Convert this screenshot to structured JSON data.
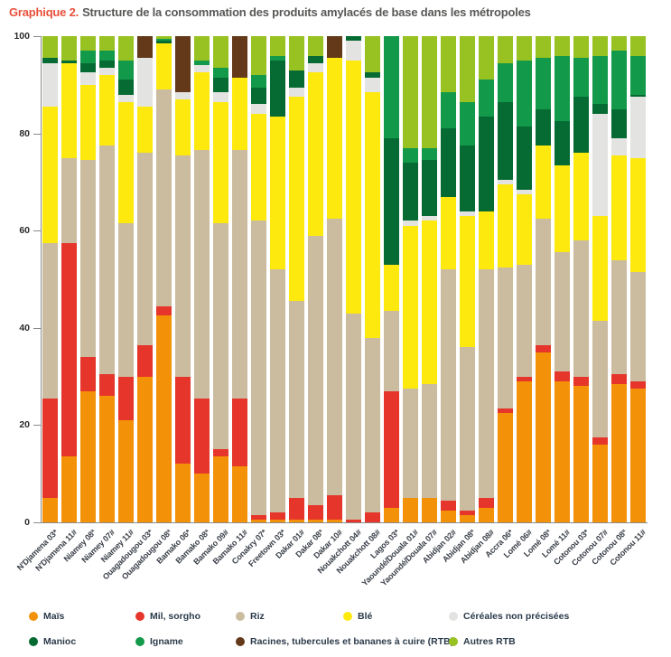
{
  "title": {
    "prefix": "Graphique 2.",
    "text": "Structure de la consommation des produits amylacés de base dans les métropoles"
  },
  "colors": {
    "mais": "#f39208",
    "mil": "#e6352b",
    "riz": "#cbbca0",
    "ble": "#fde90d",
    "cnp": "#e3e3e1",
    "manioc": "#066a33",
    "igname": "#12994a",
    "rtb": "#64391a",
    "autres_rtb": "#97c222",
    "accent_title": "#e8503a",
    "axis": "#8a8a8a"
  },
  "y_axis": {
    "ticks": [
      "0",
      "20",
      "40",
      "60",
      "80",
      "100"
    ]
  },
  "legend": {
    "items": [
      {
        "key": "mais",
        "label": "Maïs"
      },
      {
        "key": "mil",
        "label": "Mil, sorgho"
      },
      {
        "key": "riz",
        "label": "Riz"
      },
      {
        "key": "ble",
        "label": "Blé"
      },
      {
        "key": "cnp",
        "label": "Céréales non précisées"
      },
      {
        "key": "manioc",
        "label": "Manioc"
      },
      {
        "key": "igname",
        "label": "Igname"
      },
      {
        "key": "rtb",
        "label": "Racines, tubercules et bananes à cuire (RTB)"
      },
      {
        "key": "autres_rtb",
        "label": "Autres RTB"
      }
    ]
  },
  "chart_data": {
    "type": "bar",
    "stacked": true,
    "unit": "percent of staple starchy food consumption",
    "ylim": [
      0,
      100
    ],
    "grid": false,
    "legend_position": "bottom",
    "categories": [
      "N'Djamena 03*",
      "N'Djamena 11#",
      "Niamey 08ª",
      "Niamey 07#",
      "Niamey 11#",
      "Ouagadougou 03*",
      "Ouagadougou 08ª",
      "Bamako 06*",
      "Bamako 08ª",
      "Bamako 09#",
      "Bamako 11#",
      "Conakry 07*",
      "Freetown 03*",
      "Dakar 01#",
      "Dakar 08ª",
      "Dakar 10#",
      "Nouakchott 04#",
      "Nouakchott 08#",
      "Lagos 03*",
      "Yaoundé/Douala 01#",
      "Yaoundé/Douala 07#",
      "Abidjan 02#",
      "Abidjan 08ª",
      "Abidjan 08#",
      "Accra 06*",
      "Lomé 06#",
      "Lomé 08ª",
      "Lomé 11#",
      "Cotonou 03*",
      "Cotonou 07#",
      "Cotonou 08ª",
      "Cotonou 11#"
    ],
    "series": [
      {
        "key": "mais",
        "name": "Maïs",
        "values": [
          5,
          13.5,
          27,
          26,
          21,
          30,
          42.5,
          12,
          10,
          13.5,
          11.5,
          0.5,
          0.5,
          0.5,
          0.5,
          0.5,
          0,
          0,
          3,
          5,
          5,
          2.5,
          1.5,
          3,
          22.5,
          29,
          35,
          29,
          28,
          16,
          28.5,
          27.5
        ]
      },
      {
        "key": "mil",
        "name": "Mil, sorgho",
        "values": [
          20.5,
          44,
          7,
          4.5,
          9,
          6.5,
          2,
          18,
          15.5,
          1.5,
          14,
          1,
          1.5,
          4.5,
          3,
          5,
          0.5,
          2,
          24,
          0,
          0,
          2,
          1,
          2,
          1,
          1,
          1.5,
          2,
          2,
          1.5,
          2,
          1.5
        ]
      },
      {
        "key": "riz",
        "name": "Riz",
        "values": [
          32,
          17.5,
          40.5,
          47,
          31.5,
          39.5,
          44.5,
          45.5,
          51,
          46.5,
          51,
          60.5,
          50,
          40.5,
          55.5,
          57,
          42.5,
          36,
          16.5,
          22.5,
          23.5,
          47.5,
          33.5,
          47,
          29,
          23,
          26,
          24.5,
          28,
          24,
          23.5,
          22.5
        ]
      },
      {
        "key": "ble",
        "name": "Blé",
        "values": [
          28,
          19.5,
          15.5,
          14.5,
          25,
          9.5,
          9.5,
          11.5,
          16,
          25,
          15,
          22,
          31.5,
          42,
          33.5,
          33,
          52,
          50.5,
          9.5,
          33.5,
          33.5,
          15,
          27,
          12,
          17,
          14.5,
          15,
          18,
          18,
          21.5,
          21.5,
          23.5
        ]
      },
      {
        "key": "cnp",
        "name": "Céréales non précisées",
        "values": [
          9,
          0,
          2.5,
          1.5,
          1.5,
          10,
          0,
          1.5,
          1.5,
          2,
          0,
          2,
          0,
          2,
          2,
          0,
          4,
          3,
          0,
          1,
          1,
          0,
          1,
          0,
          1,
          1,
          0,
          0,
          0,
          21,
          3.5,
          12.5
        ]
      },
      {
        "key": "manioc",
        "name": "Manioc",
        "values": [
          1,
          0.5,
          2,
          1.5,
          3,
          0,
          0.5,
          0,
          0,
          3,
          0,
          3.5,
          11.5,
          3.5,
          1.5,
          0,
          1,
          1,
          26,
          12,
          11.5,
          14,
          13.5,
          19.5,
          16,
          13,
          7.5,
          9,
          11.5,
          2,
          6,
          0.5
        ]
      },
      {
        "key": "igname",
        "name": "Igname",
        "values": [
          0,
          0,
          2.5,
          2,
          4,
          0,
          0.5,
          0,
          1,
          2,
          0,
          2.5,
          1,
          0,
          0,
          0,
          0,
          0,
          21,
          3,
          2.5,
          7.5,
          9,
          7.5,
          8,
          13.5,
          10.5,
          13.5,
          8,
          10,
          12,
          8
        ]
      },
      {
        "key": "rtb",
        "name": "Racines, tubercules et bananes à cuire (RTB)",
        "values": [
          0,
          0,
          0,
          0,
          0,
          4.5,
          0,
          11.5,
          0,
          0,
          8.5,
          0,
          0,
          0,
          0,
          4.5,
          0,
          0,
          0,
          0,
          0,
          0,
          0,
          0,
          0,
          0,
          0,
          0,
          0,
          0,
          0,
          0
        ]
      },
      {
        "key": "autres_rtb",
        "name": "Autres RTB",
        "values": [
          4.5,
          5,
          3,
          3,
          5,
          0,
          0.5,
          0,
          5,
          6.5,
          0,
          8,
          4,
          7,
          4,
          0,
          0,
          7.5,
          0,
          23,
          23,
          11.5,
          13.5,
          9,
          5.5,
          5,
          4.5,
          4,
          4.5,
          4,
          3,
          4
        ]
      }
    ]
  }
}
